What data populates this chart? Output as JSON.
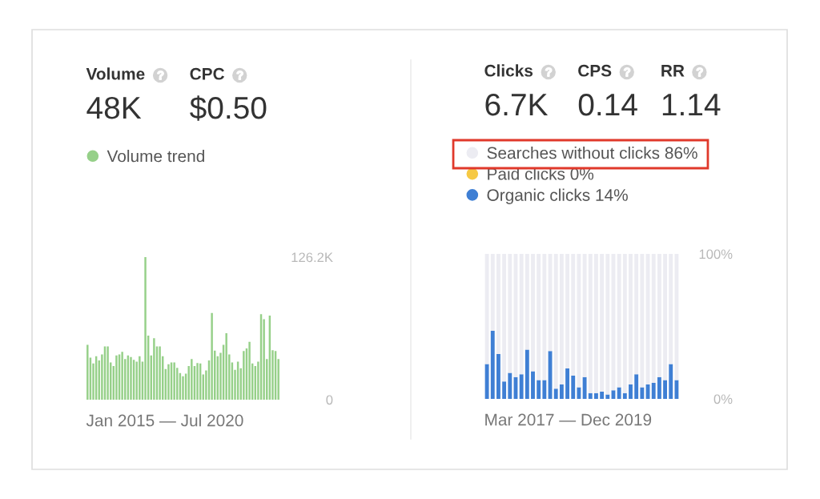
{
  "chart_data": [
    {
      "type": "bar",
      "annotations": [
        "Volume",
        "CPC",
        "48K",
        "$0.50"
      ],
      "xlabel": "Jan 2015 — Jul 2020",
      "legend": "top left",
      "categories": [
        null,
        null,
        null,
        null,
        null,
        null,
        null,
        null,
        null,
        null,
        null,
        null,
        null,
        null,
        null,
        null,
        null,
        null,
        null,
        null,
        null,
        null,
        null,
        null,
        null,
        null,
        null,
        null,
        null,
        null,
        null,
        null,
        null,
        null,
        null,
        null,
        null,
        null,
        null,
        null,
        null,
        null,
        null,
        null,
        null,
        null,
        null,
        null,
        null,
        null,
        null,
        null,
        null,
        null,
        null,
        null,
        null,
        null,
        null,
        null,
        null,
        null,
        null,
        null,
        null,
        null,
        null
      ],
      "series": [
        {
          "name": "Volume trend",
          "color": "#96d089",
          "values": [
            48500,
            37200,
            32000,
            38400,
            34800,
            40000,
            47100,
            47100,
            33000,
            29700,
            39100,
            40000,
            42400,
            36000,
            39100,
            37700,
            35300,
            33700,
            38400,
            33700,
            126200,
            56700,
            39100,
            54400,
            47100,
            47100,
            38400,
            27100,
            31300,
            33000,
            33000,
            28200,
            23500,
            20700,
            23100,
            29700,
            36000,
            29700,
            32500,
            32000,
            22400,
            25900,
            34800,
            76700,
            43500,
            38400,
            41400,
            48500,
            58900,
            40000,
            33000,
            26400,
            33700,
            27800,
            43100,
            45400,
            51300,
            32000,
            29700,
            33700,
            75600,
            71300,
            36000,
            74400,
            43800,
            43100,
            36000
          ]
        }
      ],
      "ylim": [
        0,
        126200
      ],
      "yticks": [
        0,
        {
          "value": 126200,
          "label": "126.2K"
        }
      ]
    },
    {
      "type": "bar",
      "stacked": true,
      "annotations": [
        "Clicks",
        "CPS",
        "RR",
        "6.7K",
        "0.14",
        "1.14"
      ],
      "xlabel": "Mar 2017 — Dec 2019",
      "legend": "top",
      "categories": [
        null,
        null,
        null,
        null,
        null,
        null,
        null,
        null,
        null,
        null,
        null,
        null,
        null,
        null,
        null,
        null,
        null,
        null,
        null,
        null,
        null,
        null,
        null,
        null,
        null,
        null,
        null,
        null,
        null,
        null,
        null,
        null,
        null,
        null
      ],
      "series": [
        {
          "name": "Organic clicks 14%",
          "color": "#3f7fd4",
          "values": [
            24,
            47,
            31,
            12,
            18,
            15,
            17,
            34,
            19,
            13,
            13,
            33,
            7,
            10,
            21,
            16,
            8,
            15,
            4,
            4,
            5,
            3,
            6,
            8,
            4,
            10,
            17,
            8,
            10,
            11,
            15,
            13,
            24,
            13
          ]
        },
        {
          "name": "Paid clicks 0%",
          "color": "#f6c945",
          "values": [
            0,
            0,
            0,
            0,
            0,
            0,
            0,
            0,
            0,
            0,
            0,
            0,
            0,
            0,
            0,
            0,
            0,
            0,
            0,
            0,
            0,
            0,
            0,
            0,
            0,
            0,
            0,
            0,
            0,
            0,
            0,
            0,
            0,
            0
          ]
        },
        {
          "name": "Searches without clicks 86%",
          "color": "#ececf2",
          "values": [
            76,
            53,
            69,
            88,
            82,
            85,
            83,
            66,
            81,
            87,
            87,
            67,
            93,
            90,
            79,
            84,
            92,
            85,
            96,
            96,
            95,
            97,
            94,
            92,
            96,
            90,
            83,
            92,
            90,
            89,
            85,
            87,
            76,
            87
          ]
        }
      ],
      "ylim": [
        0,
        100
      ],
      "yticks": [
        {
          "value": 0,
          "label": "0%"
        },
        {
          "value": 100,
          "label": "100%"
        }
      ]
    }
  ]
}
